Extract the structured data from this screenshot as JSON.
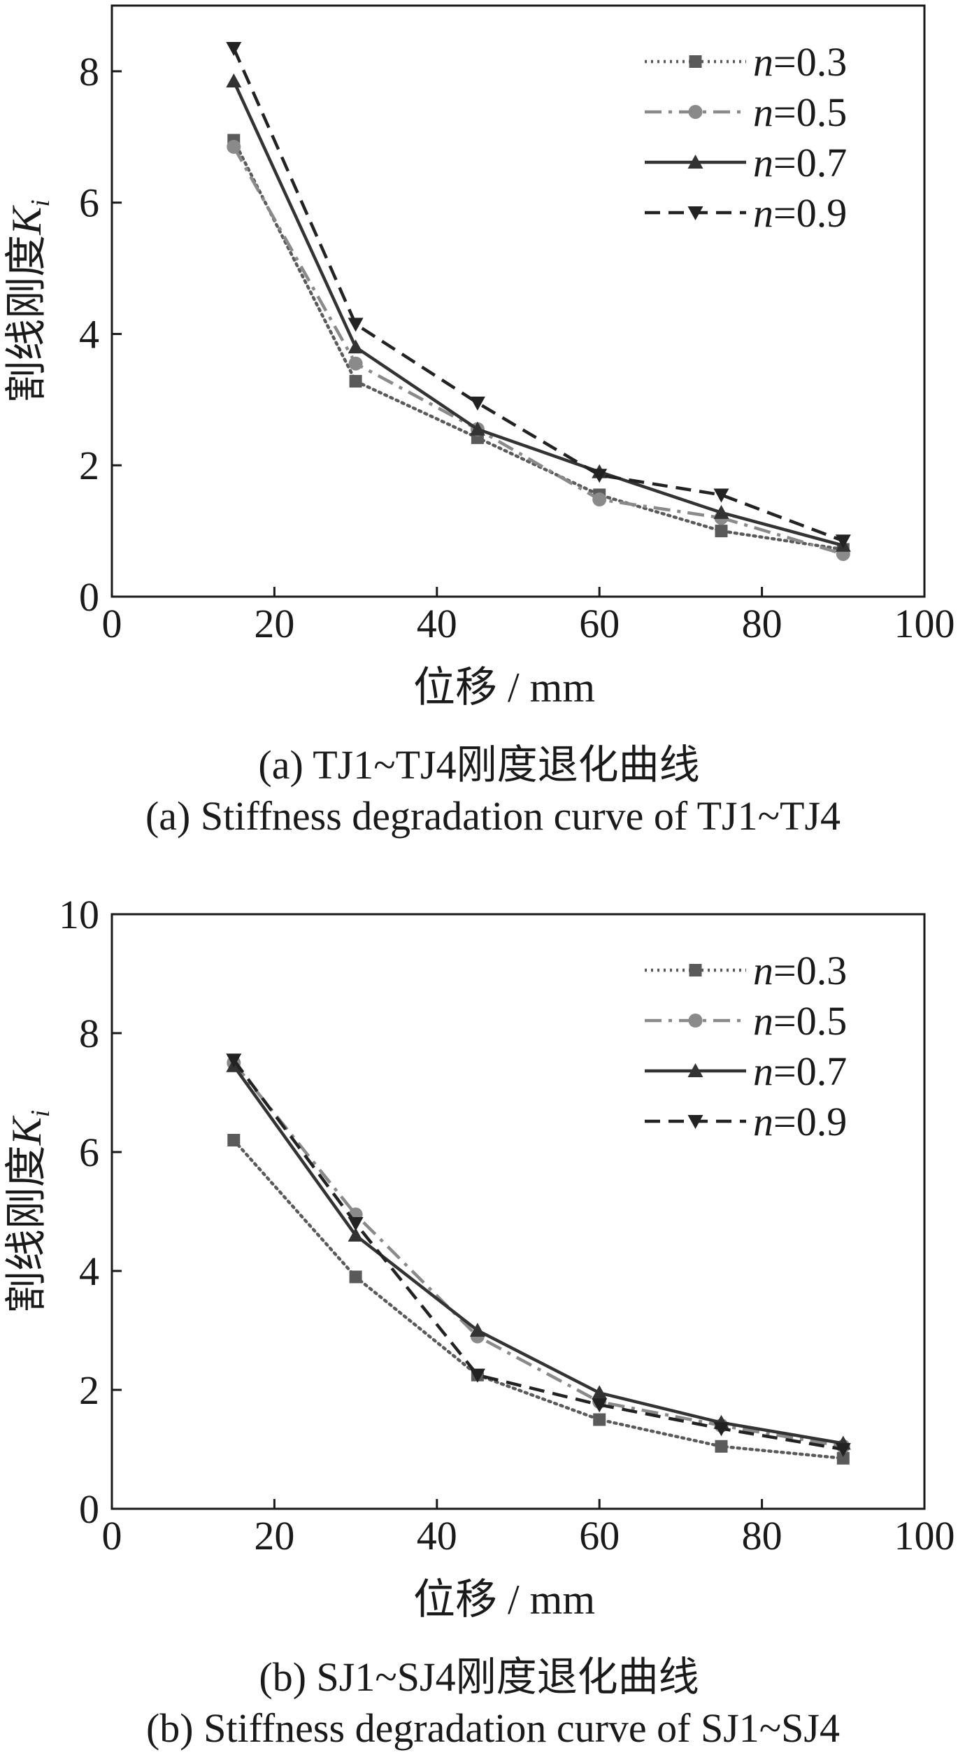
{
  "chart_data": [
    {
      "type": "line",
      "caption_cn": "(a)  TJ1~TJ4刚度退化曲线",
      "caption_en": "(a)  Stiffness degradation curve of  TJ1~TJ4",
      "xlabel": "位移 / mm",
      "ylabel_text": "割线刚度",
      "ylabel_var": "K",
      "ylabel_sub": "i",
      "xlim": [
        0,
        100
      ],
      "ylim": [
        0,
        9
      ],
      "xticks": [
        0,
        20,
        40,
        60,
        80,
        100
      ],
      "yticks": [
        0,
        2,
        4,
        6,
        8
      ],
      "grid": false,
      "legend_position": "top-right",
      "x": [
        15,
        30,
        45,
        60,
        75,
        90
      ],
      "series": [
        {
          "name": "n=0.3",
          "name_var": "n",
          "name_val": "=0.3",
          "values": [
            6.95,
            3.28,
            2.42,
            1.55,
            1.0,
            0.72
          ],
          "color": "#5a5a5a",
          "dash": "dotted",
          "marker": "square"
        },
        {
          "name": "n=0.5",
          "name_var": "n",
          "name_val": "=0.5",
          "values": [
            6.85,
            3.55,
            2.55,
            1.48,
            1.2,
            0.65
          ],
          "color": "#8a8a8a",
          "dash": "dashdot",
          "marker": "circle"
        },
        {
          "name": "n=0.7",
          "name_var": "n",
          "name_val": "=0.7",
          "values": [
            7.85,
            3.8,
            2.55,
            1.9,
            1.28,
            0.78
          ],
          "color": "#333333",
          "dash": "solid",
          "marker": "triangle-up"
        },
        {
          "name": "n=0.9",
          "name_var": "n",
          "name_val": "=0.9",
          "values": [
            8.35,
            4.15,
            2.95,
            1.85,
            1.55,
            0.85
          ],
          "color": "#222222",
          "dash": "dashed",
          "marker": "triangle-down"
        }
      ]
    },
    {
      "type": "line",
      "caption_cn": "(b)  SJ1~SJ4刚度退化曲线",
      "caption_en": "(b)  Stiffness degradation curve of  SJ1~SJ4",
      "xlabel": "位移 / mm",
      "ylabel_text": "割线刚度",
      "ylabel_var": "K",
      "ylabel_sub": "i",
      "xlim": [
        0,
        100
      ],
      "ylim": [
        0,
        10
      ],
      "xticks": [
        0,
        20,
        40,
        60,
        80,
        100
      ],
      "yticks": [
        0,
        2,
        4,
        6,
        8,
        10
      ],
      "grid": false,
      "legend_position": "top-right",
      "x": [
        15,
        30,
        45,
        60,
        75,
        90
      ],
      "series": [
        {
          "name": "n=0.3",
          "name_var": "n",
          "name_val": "=0.3",
          "values": [
            6.2,
            3.9,
            2.25,
            1.5,
            1.05,
            0.85
          ],
          "color": "#5a5a5a",
          "dash": "dotted",
          "marker": "square"
        },
        {
          "name": "n=0.5",
          "name_var": "n",
          "name_val": "=0.5",
          "values": [
            7.5,
            4.95,
            2.9,
            1.8,
            1.4,
            1.05
          ],
          "color": "#8a8a8a",
          "dash": "dashdot",
          "marker": "circle"
        },
        {
          "name": "n=0.7",
          "name_var": "n",
          "name_val": "=0.7",
          "values": [
            7.45,
            4.6,
            3.0,
            1.95,
            1.45,
            1.1
          ],
          "color": "#333333",
          "dash": "solid",
          "marker": "triangle-up"
        },
        {
          "name": "n=0.9",
          "name_var": "n",
          "name_val": "=0.9",
          "values": [
            7.55,
            4.8,
            2.25,
            1.75,
            1.35,
            1.0
          ],
          "color": "#222222",
          "dash": "dashed",
          "marker": "triangle-down"
        }
      ]
    }
  ]
}
